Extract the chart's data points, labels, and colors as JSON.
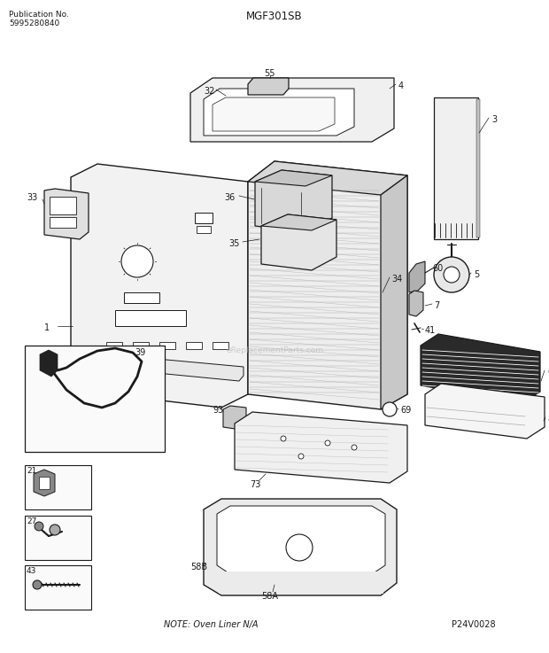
{
  "title": "MGF301SB",
  "pub_no_label": "Publication No.",
  "pub_no": "5995280840",
  "part_no": "P24V0028",
  "note": "NOTE: Oven Liner N/A",
  "watermark": "eReplacementParts.com",
  "bg_color": "#ffffff",
  "lc": "#1a1a1a",
  "tc": "#1a1a1a",
  "fig_w": 6.2,
  "fig_h": 7.37,
  "dpi": 100
}
